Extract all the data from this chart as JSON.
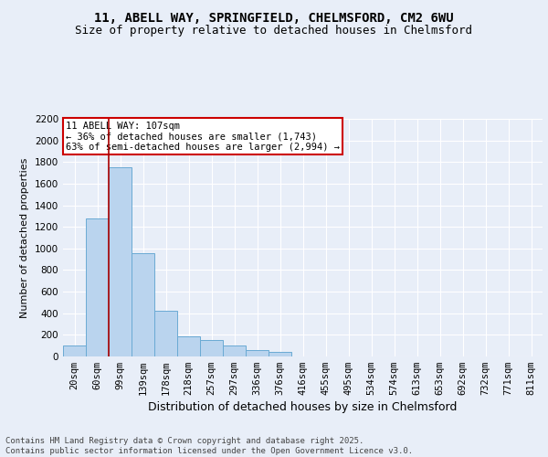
{
  "title_line1": "11, ABELL WAY, SPRINGFIELD, CHELMSFORD, CM2 6WU",
  "title_line2": "Size of property relative to detached houses in Chelmsford",
  "xlabel": "Distribution of detached houses by size in Chelmsford",
  "ylabel": "Number of detached properties",
  "footer_line1": "Contains HM Land Registry data © Crown copyright and database right 2025.",
  "footer_line2": "Contains public sector information licensed under the Open Government Licence v3.0.",
  "bar_categories": [
    "20sqm",
    "60sqm",
    "99sqm",
    "139sqm",
    "178sqm",
    "218sqm",
    "257sqm",
    "297sqm",
    "336sqm",
    "376sqm",
    "416sqm",
    "455sqm",
    "495sqm",
    "534sqm",
    "574sqm",
    "613sqm",
    "653sqm",
    "692sqm",
    "732sqm",
    "771sqm",
    "811sqm"
  ],
  "bar_values": [
    100,
    1280,
    1750,
    960,
    420,
    185,
    155,
    100,
    60,
    45,
    0,
    0,
    0,
    0,
    0,
    0,
    0,
    0,
    0,
    0,
    0
  ],
  "bar_color": "#bad4ee",
  "bar_edge_color": "#6aaad4",
  "background_color": "#e8eef8",
  "grid_color": "#ffffff",
  "vline_color": "#aa0000",
  "annotation_title": "11 ABELL WAY: 107sqm",
  "annotation_line1": "← 36% of detached houses are smaller (1,743)",
  "annotation_line2": "63% of semi-detached houses are larger (2,994) →",
  "annotation_box_facecolor": "#ffffff",
  "annotation_box_edgecolor": "#cc0000",
  "ylim": [
    0,
    2200
  ],
  "yticks": [
    0,
    200,
    400,
    600,
    800,
    1000,
    1200,
    1400,
    1600,
    1800,
    2000,
    2200
  ],
  "title_fontsize": 10,
  "subtitle_fontsize": 9,
  "ylabel_fontsize": 8,
  "xlabel_fontsize": 9,
  "tick_fontsize": 7.5,
  "annotation_fontsize": 7.5,
  "footer_fontsize": 6.5
}
